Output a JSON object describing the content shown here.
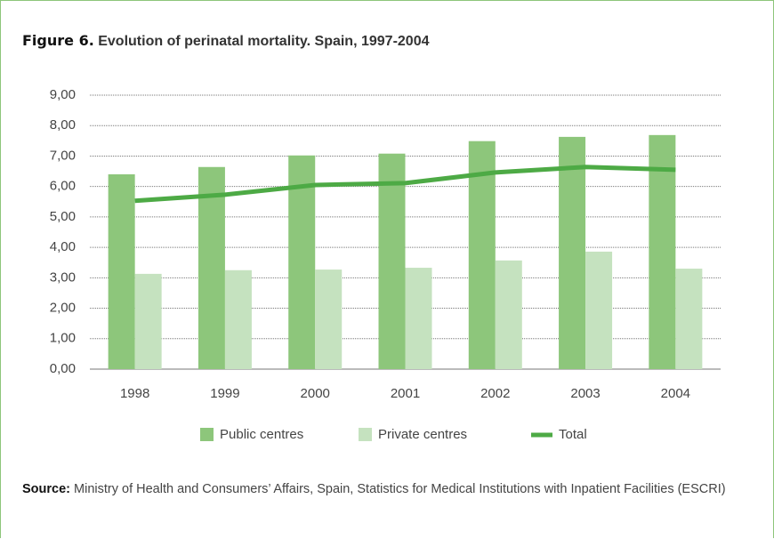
{
  "chart_data": {
    "type": "bar",
    "figure_label": "Figure 6.",
    "title": "Evolution of perinatal mortality. Spain, 1997-2004",
    "categories": [
      "1998",
      "1999",
      "2000",
      "2001",
      "2002",
      "2003",
      "2004"
    ],
    "series": [
      {
        "name": "Public centres",
        "type": "bar",
        "color": "#8dc67b",
        "values": [
          6.4,
          6.64,
          7.02,
          7.08,
          7.49,
          7.63,
          7.69
        ]
      },
      {
        "name": "Private centres",
        "type": "bar",
        "color": "#c5e2bf",
        "values": [
          3.13,
          3.25,
          3.27,
          3.33,
          3.57,
          3.86,
          3.3
        ]
      },
      {
        "name": "Total",
        "type": "line",
        "color": "#4daa45",
        "values": [
          5.53,
          5.73,
          6.05,
          6.11,
          6.46,
          6.64,
          6.55
        ]
      }
    ],
    "ylim": [
      0,
      9
    ],
    "yticks": [
      {
        "value": 0,
        "label": "0,00"
      },
      {
        "value": 1,
        "label": "1,00"
      },
      {
        "value": 2,
        "label": "2,00"
      },
      {
        "value": 3,
        "label": "3,00"
      },
      {
        "value": 4,
        "label": "4,00"
      },
      {
        "value": 5,
        "label": "5,00"
      },
      {
        "value": 6,
        "label": "6,00"
      },
      {
        "value": 7,
        "label": "7,00"
      },
      {
        "value": 8,
        "label": "8,00"
      },
      {
        "value": 9,
        "label": "9,00"
      }
    ],
    "grid": true,
    "legend": "bottom",
    "source_label": "Source:",
    "source": "Ministry of Health and Consumers’ Affairs, Spain, Statistics for Medical Institutions with Inpatient Facilities (ESCRI)"
  }
}
